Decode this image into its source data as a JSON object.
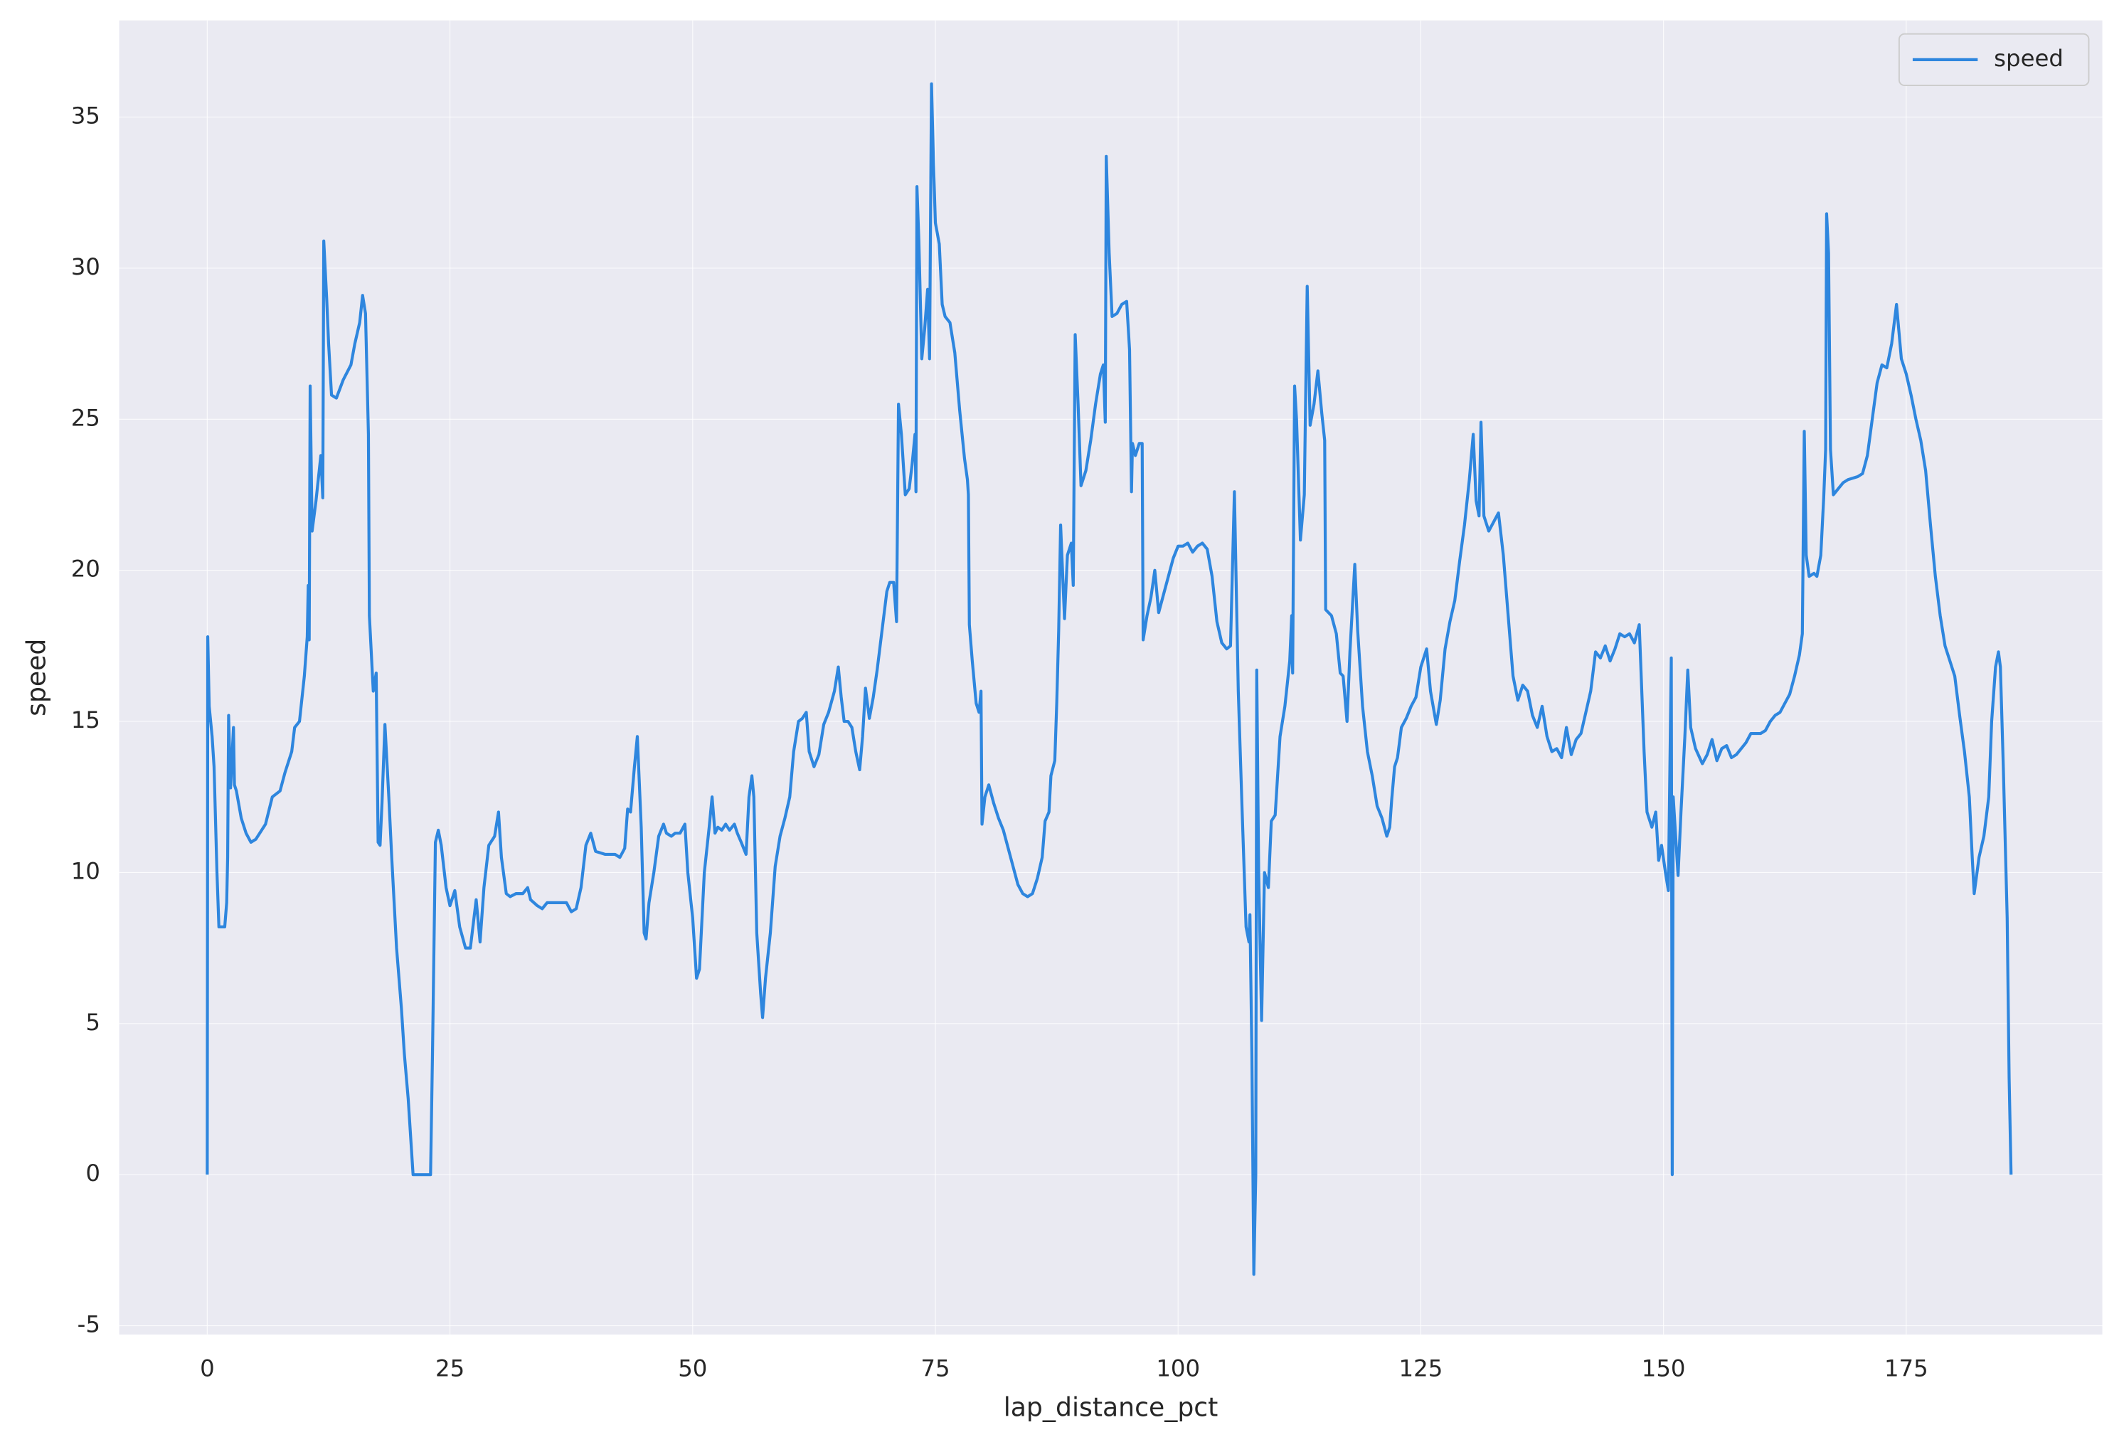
{
  "chart_data": {
    "type": "line",
    "xlabel": "lap_distance_pct",
    "ylabel": "speed",
    "xlim": [
      -9.07,
      195.2
    ],
    "ylim": [
      -5.29,
      38.2
    ],
    "xticks": [
      0,
      25,
      50,
      75,
      100,
      125,
      150,
      175
    ],
    "yticks": [
      -5,
      0,
      5,
      10,
      15,
      20,
      25,
      30,
      35
    ],
    "grid": true,
    "legend": "upper right",
    "x": [
      0,
      0.05,
      0.2,
      0.5,
      0.7,
      1.0,
      1.2,
      1.8,
      2.0,
      2.1,
      2.2,
      2.4,
      2.7,
      2.8,
      3.0,
      3.5,
      4.0,
      4.5,
      5.0,
      6,
      6.7,
      7.5,
      8,
      8.7,
      9,
      9.5,
      10,
      10.3,
      10.4,
      10.5,
      10.6,
      10.8,
      11.2,
      11.7,
      11.9,
      12.0,
      12.3,
      12.5,
      12.8,
      13.3,
      14.0,
      14.8,
      15.2,
      15.7,
      16.0,
      16.3,
      16.6,
      16.7,
      17.1,
      17.4,
      17.6,
      17.8,
      18.0,
      18.3,
      18.7,
      19.0,
      19.5,
      20.0,
      20.3,
      20.7,
      21.0,
      21.2,
      23.0,
      23.2,
      23.5,
      23.8,
      24.1,
      24.6,
      25.0,
      25.5,
      26.0,
      26.6,
      27.1,
      27.7,
      28.1,
      28.5,
      29.0,
      29.6,
      30.0,
      30.3,
      30.8,
      31.2,
      31.8,
      32.5,
      33,
      33.3,
      34,
      34.5,
      35,
      36,
      37,
      37.5,
      38,
      38.5,
      39,
      39.5,
      40,
      41,
      42,
      42.5,
      43,
      43.3,
      43.6,
      44,
      44.3,
      44.7,
      45,
      45.2,
      45.5,
      46,
      46.5,
      47,
      47.3,
      47.8,
      48.2,
      48.7,
      49.2,
      49.5,
      50,
      50.4,
      50.7,
      51.2,
      51.7,
      52.0,
      52.3,
      52.6,
      53,
      53.4,
      53.8,
      54.3,
      54.6,
      55,
      55.5,
      55.8,
      56.1,
      56.3,
      56.6,
      57,
      57.2,
      57.5,
      58,
      58.5,
      59,
      59.5,
      60,
      60.4,
      60.9,
      61.3,
      61.7,
      62,
      62.5,
      63,
      63.5,
      64,
      64.6,
      65,
      65.3,
      65.6,
      66,
      66.4,
      66.8,
      67.2,
      67.5,
      67.8,
      68.2,
      68.6,
      69,
      69.5,
      70,
      70.3,
      70.7,
      71,
      71.2,
      71.5,
      71.9,
      72.3,
      72.6,
      72.9,
      73.0,
      73.1,
      73.3,
      73.6,
      73.9,
      74.2,
      74.4,
      74.6,
      74.8,
      75.0,
      75.4,
      75.7,
      76,
      76.5,
      77,
      77.5,
      78,
      78.3,
      78.4,
      78.5,
      78.8,
      79.2,
      79.5,
      79.7,
      79.8,
      80.1,
      80.5,
      81,
      81.5,
      82,
      82.5,
      83,
      83.5,
      84,
      84.5,
      85,
      85.5,
      86,
      86.3,
      86.7,
      86.9,
      87.3,
      87.5,
      87.7,
      87.9,
      88.3,
      88.6,
      89,
      89.2,
      89.4,
      89.7,
      90,
      90.5,
      91,
      91.5,
      92,
      92.3,
      92.5,
      92.6,
      92.9,
      93.2,
      93.7,
      94.2,
      94.7,
      95,
      95.2,
      95.3,
      95.6,
      96,
      96.3,
      96.4,
      96.8,
      97.2,
      97.6,
      98,
      98.5,
      99,
      99.5,
      100,
      100.5,
      101,
      101.5,
      102,
      102.5,
      103,
      103.5,
      104,
      104.5,
      105,
      105.4,
      105.8,
      106.2,
      106.6,
      107,
      107.3,
      107.4,
      107.6,
      107.8,
      108.0,
      108.1,
      108.3,
      108.6,
      108.9,
      109.3,
      109.6,
      110,
      110.5,
      111,
      111.5,
      111.7,
      111.8,
      112.0,
      112.2,
      112.6,
      113,
      113.3,
      113.6,
      114.0,
      114.4,
      114.8,
      115.1,
      115.2,
      115.8,
      116.3,
      116.7,
      117,
      117.4,
      117.7,
      118.2,
      118.5,
      119,
      119.5,
      120,
      120.5,
      121,
      121.5,
      121.8,
      122,
      122.3,
      122.6,
      123,
      123.5,
      124,
      124.5,
      125,
      125.6,
      126,
      126.6,
      127,
      127.5,
      128,
      128.5,
      129,
      129.5,
      130,
      130.4,
      130.7,
      131,
      131.2,
      131.5,
      132,
      132.5,
      133,
      133.5,
      134,
      134.5,
      135,
      135.5,
      136,
      136.5,
      137,
      137.5,
      138,
      138.5,
      139,
      139.5,
      140,
      140.5,
      141,
      141.5,
      142,
      142.5,
      143,
      143.5,
      144,
      144.5,
      145,
      145.5,
      146,
      146.5,
      147,
      147.5,
      148,
      148.3,
      148.8,
      149.2,
      149.5,
      149.8,
      150.2,
      150.5,
      150.8,
      150.9,
      151.0,
      151.5,
      151.8,
      152.2,
      152.5,
      152.8,
      153.3,
      154,
      154.5,
      155,
      155.5,
      156,
      156.5,
      157,
      157.5,
      158,
      158.5,
      159,
      160,
      160.5,
      161,
      161.5,
      162,
      162.5,
      163,
      163.5,
      164,
      164.3,
      164.5,
      164.7,
      165,
      165.5,
      165.8,
      166.2,
      166.5,
      166.7,
      166.8,
      167.0,
      167.2,
      167.5,
      168,
      168.5,
      169,
      170,
      170.5,
      171,
      171.5,
      172,
      172.5,
      173,
      173.5,
      174,
      174.5,
      175,
      175.5,
      176,
      176.5,
      177,
      177.5,
      178,
      178.5,
      179,
      179.5,
      180,
      180.5,
      181,
      181.5,
      181.8,
      182.0,
      182.5,
      183,
      183.5,
      183.8,
      184.2,
      184.5,
      184.7,
      185,
      185.4,
      185.6,
      185.8
    ],
    "series": [
      {
        "name": "speed",
        "color": "#2e86de",
        "values": [
          0,
          17.8,
          15.5,
          14.5,
          13.5,
          10,
          8.2,
          8.2,
          9,
          10.5,
          15.2,
          12.8,
          14.8,
          12.9,
          12.7,
          11.8,
          11.3,
          11.0,
          11.1,
          11.6,
          12.5,
          12.7,
          13.3,
          14.0,
          14.8,
          15.0,
          16.5,
          17.8,
          19.5,
          17.7,
          26.1,
          21.3,
          22.3,
          23.8,
          22.4,
          30.9,
          29,
          27.5,
          25.8,
          25.7,
          26.3,
          26.8,
          27.5,
          28.2,
          29.1,
          28.5,
          24.5,
          18.5,
          16.0,
          16.6,
          11.0,
          10.9,
          12.3,
          14.9,
          12.5,
          10.5,
          7.5,
          5.5,
          4.0,
          2.5,
          1.0,
          0,
          0,
          4,
          11.0,
          11.4,
          10.9,
          9.5,
          8.9,
          9.4,
          8.2,
          7.5,
          7.5,
          9.1,
          7.7,
          9.5,
          10.9,
          11.2,
          12.0,
          10.5,
          9.3,
          9.2,
          9.3,
          9.3,
          9.5,
          9.1,
          8.9,
          8.8,
          9.0,
          9.0,
          9.0,
          8.7,
          8.8,
          9.5,
          10.9,
          11.3,
          10.7,
          10.6,
          10.6,
          10.5,
          10.8,
          12.1,
          12.0,
          13.5,
          14.5,
          11.5,
          8.0,
          7.8,
          9,
          10,
          11.2,
          11.6,
          11.3,
          11.2,
          11.3,
          11.3,
          11.6,
          10,
          8.5,
          6.5,
          6.8,
          10,
          11.5,
          12.5,
          11.3,
          11.5,
          11.4,
          11.6,
          11.4,
          11.6,
          11.3,
          11,
          10.6,
          12.5,
          13.2,
          12.5,
          8.0,
          6.0,
          5.2,
          6.5,
          8.0,
          10.2,
          11.2,
          11.8,
          12.5,
          14,
          15.0,
          15.1,
          15.3,
          14.0,
          13.5,
          13.9,
          14.9,
          15.3,
          16,
          16.8,
          15.8,
          15.0,
          15.0,
          14.8,
          14.0,
          13.4,
          14.5,
          16.1,
          15.1,
          15.8,
          16.7,
          18,
          19.3,
          19.6,
          19.6,
          18.3,
          25.5,
          24.5,
          22.5,
          22.7,
          23.5,
          24.5,
          22.6,
          32.7,
          30.9,
          27.0,
          28,
          29.3,
          27.0,
          36.1,
          33.5,
          31.5,
          30.8,
          28.8,
          28.4,
          28.2,
          27.2,
          25.3,
          23.7,
          23.0,
          22.5,
          18.2,
          17.0,
          15.6,
          15.3,
          16.0,
          11.6,
          12.5,
          12.9,
          12.3,
          11.8,
          11.4,
          10.8,
          10.2,
          9.6,
          9.3,
          9.2,
          9.3,
          9.8,
          10.5,
          11.7,
          12.0,
          13.2,
          13.7,
          15.6,
          18,
          21.5,
          18.4,
          20.5,
          20.9,
          19.5,
          27.8,
          25.5,
          22.8,
          23.3,
          24.3,
          25.5,
          26.5,
          26.8,
          24.9,
          33.7,
          30.5,
          28.4,
          28.5,
          28.8,
          28.9,
          27.3,
          22.6,
          24.2,
          23.8,
          24.2,
          24.2,
          17.7,
          18.5,
          19.1,
          20.0,
          18.6,
          19.2,
          19.8,
          20.4,
          20.8,
          20.8,
          20.9,
          20.6,
          20.8,
          20.9,
          20.7,
          19.8,
          18.3,
          17.6,
          17.4,
          17.5,
          22.6,
          16,
          12,
          8.2,
          7.7,
          8.6,
          4,
          -3.3,
          0,
          16.7,
          10,
          5.1,
          10.0,
          9.5,
          11.7,
          11.9,
          14.5,
          15.5,
          17.0,
          18.5,
          16.6,
          26.1,
          25,
          21.0,
          22.5,
          29.4,
          24.8,
          25.5,
          26.6,
          25.2,
          24.3,
          18.7,
          18.5,
          17.9,
          16.6,
          16.5,
          15.0,
          17.3,
          20.2,
          18,
          15.5,
          14.0,
          13.2,
          12.2,
          11.8,
          11.2,
          11.5,
          12.4,
          13.5,
          13.8,
          14.8,
          15.1,
          15.5,
          15.8,
          16.8,
          17.4,
          16.0,
          14.9,
          15.7,
          17.4,
          18.3,
          19.0,
          20.3,
          21.5,
          23.0,
          24.5,
          22.3,
          21.8,
          24.9,
          21.8,
          21.3,
          21.6,
          21.9,
          20.5,
          18.5,
          16.5,
          15.7,
          16.2,
          16.0,
          15.2,
          14.8,
          15.5,
          14.5,
          14.0,
          14.1,
          13.8,
          14.8,
          13.9,
          14.4,
          14.6,
          15.3,
          16.0,
          17.3,
          17.1,
          17.5,
          17.0,
          17.4,
          17.9,
          17.8,
          17.9,
          17.6,
          18.2,
          14,
          12.0,
          11.5,
          12.0,
          10.4,
          10.9,
          10.0,
          9.4,
          17.1,
          0,
          12.5,
          9.9,
          12,
          14.5,
          16.7,
          14.8,
          14.1,
          13.6,
          13.9,
          14.4,
          13.7,
          14.1,
          14.2,
          13.8,
          13.9,
          14.1,
          14.3,
          14.6,
          14.6,
          14.7,
          15.0,
          15.2,
          15.3,
          15.6,
          15.9,
          16.5,
          17.2,
          17.9,
          24.6,
          20.5,
          19.8,
          19.9,
          19.8,
          20.5,
          22.4,
          24,
          31.8,
          30.5,
          24,
          22.5,
          22.7,
          22.9,
          23.0,
          23.1,
          23.2,
          23.8,
          25.0,
          26.2,
          26.8,
          26.7,
          27.5,
          28.8,
          27.0,
          26.5,
          25.8,
          25.0,
          24.3,
          23.3,
          21.5,
          19.8,
          18.5,
          17.5,
          17.0,
          16.5,
          15.2,
          14.0,
          12.5,
          10.5,
          9.3,
          10.5,
          11.2,
          12.5,
          15.0,
          16.8,
          17.3,
          16.8,
          13.5,
          8.5,
          3.2,
          0
        ]
      }
    ]
  }
}
